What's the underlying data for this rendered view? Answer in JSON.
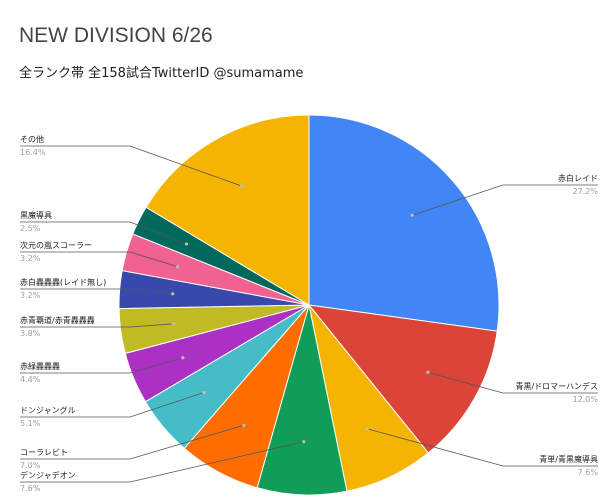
{
  "title": "NEW DIVISION 6/26",
  "subtitle": "全ランク帯 全158試合TwitterID @sumamame",
  "chart_data": {
    "type": "pie",
    "title": "NEW DIVISION 6/26",
    "subtitle": "全ランク帯 全158試合TwitterID @sumamame",
    "slices": [
      {
        "label": "赤白レイド",
        "value": 27.2,
        "display": "27.2%",
        "color": "#4285F4"
      },
      {
        "label": "青黒/ドロマーハンデス",
        "value": 12.0,
        "display": "12.0%",
        "color": "#DB4437"
      },
      {
        "label": "青単/青黒魔導具",
        "value": 7.6,
        "display": "7.6%",
        "color": "#F4B400"
      },
      {
        "label": "デンジャデオン",
        "value": 7.6,
        "display": "7.6%",
        "color": "#0F9D58"
      },
      {
        "label": "コーラレビト",
        "value": 7.0,
        "display": "7.0%",
        "color": "#FF6D00"
      },
      {
        "label": "ドンジャングル",
        "value": 5.1,
        "display": "5.1%",
        "color": "#46BDC6"
      },
      {
        "label": "赤緑轟轟轟",
        "value": 4.4,
        "display": "4.4%",
        "color": "#AB30C4"
      },
      {
        "label": "赤青覇道/赤青轟轟轟",
        "value": 3.8,
        "display": "3.8%",
        "color": "#C0BA24"
      },
      {
        "label": "赤白轟轟轟(レイド無し)",
        "value": 3.2,
        "display": "3.2%",
        "color": "#3949AB"
      },
      {
        "label": "次元の嵐スコーラー",
        "value": 3.2,
        "display": "3.2%",
        "color": "#F06292"
      },
      {
        "label": "黒魔導具",
        "value": 2.5,
        "display": "2.5%",
        "color": "#00695C"
      },
      {
        "label": "その他",
        "value": 16.4,
        "display": "16.4%",
        "color": "#F4B400"
      }
    ],
    "legend": "none",
    "start_angle": "top, clockwise"
  }
}
